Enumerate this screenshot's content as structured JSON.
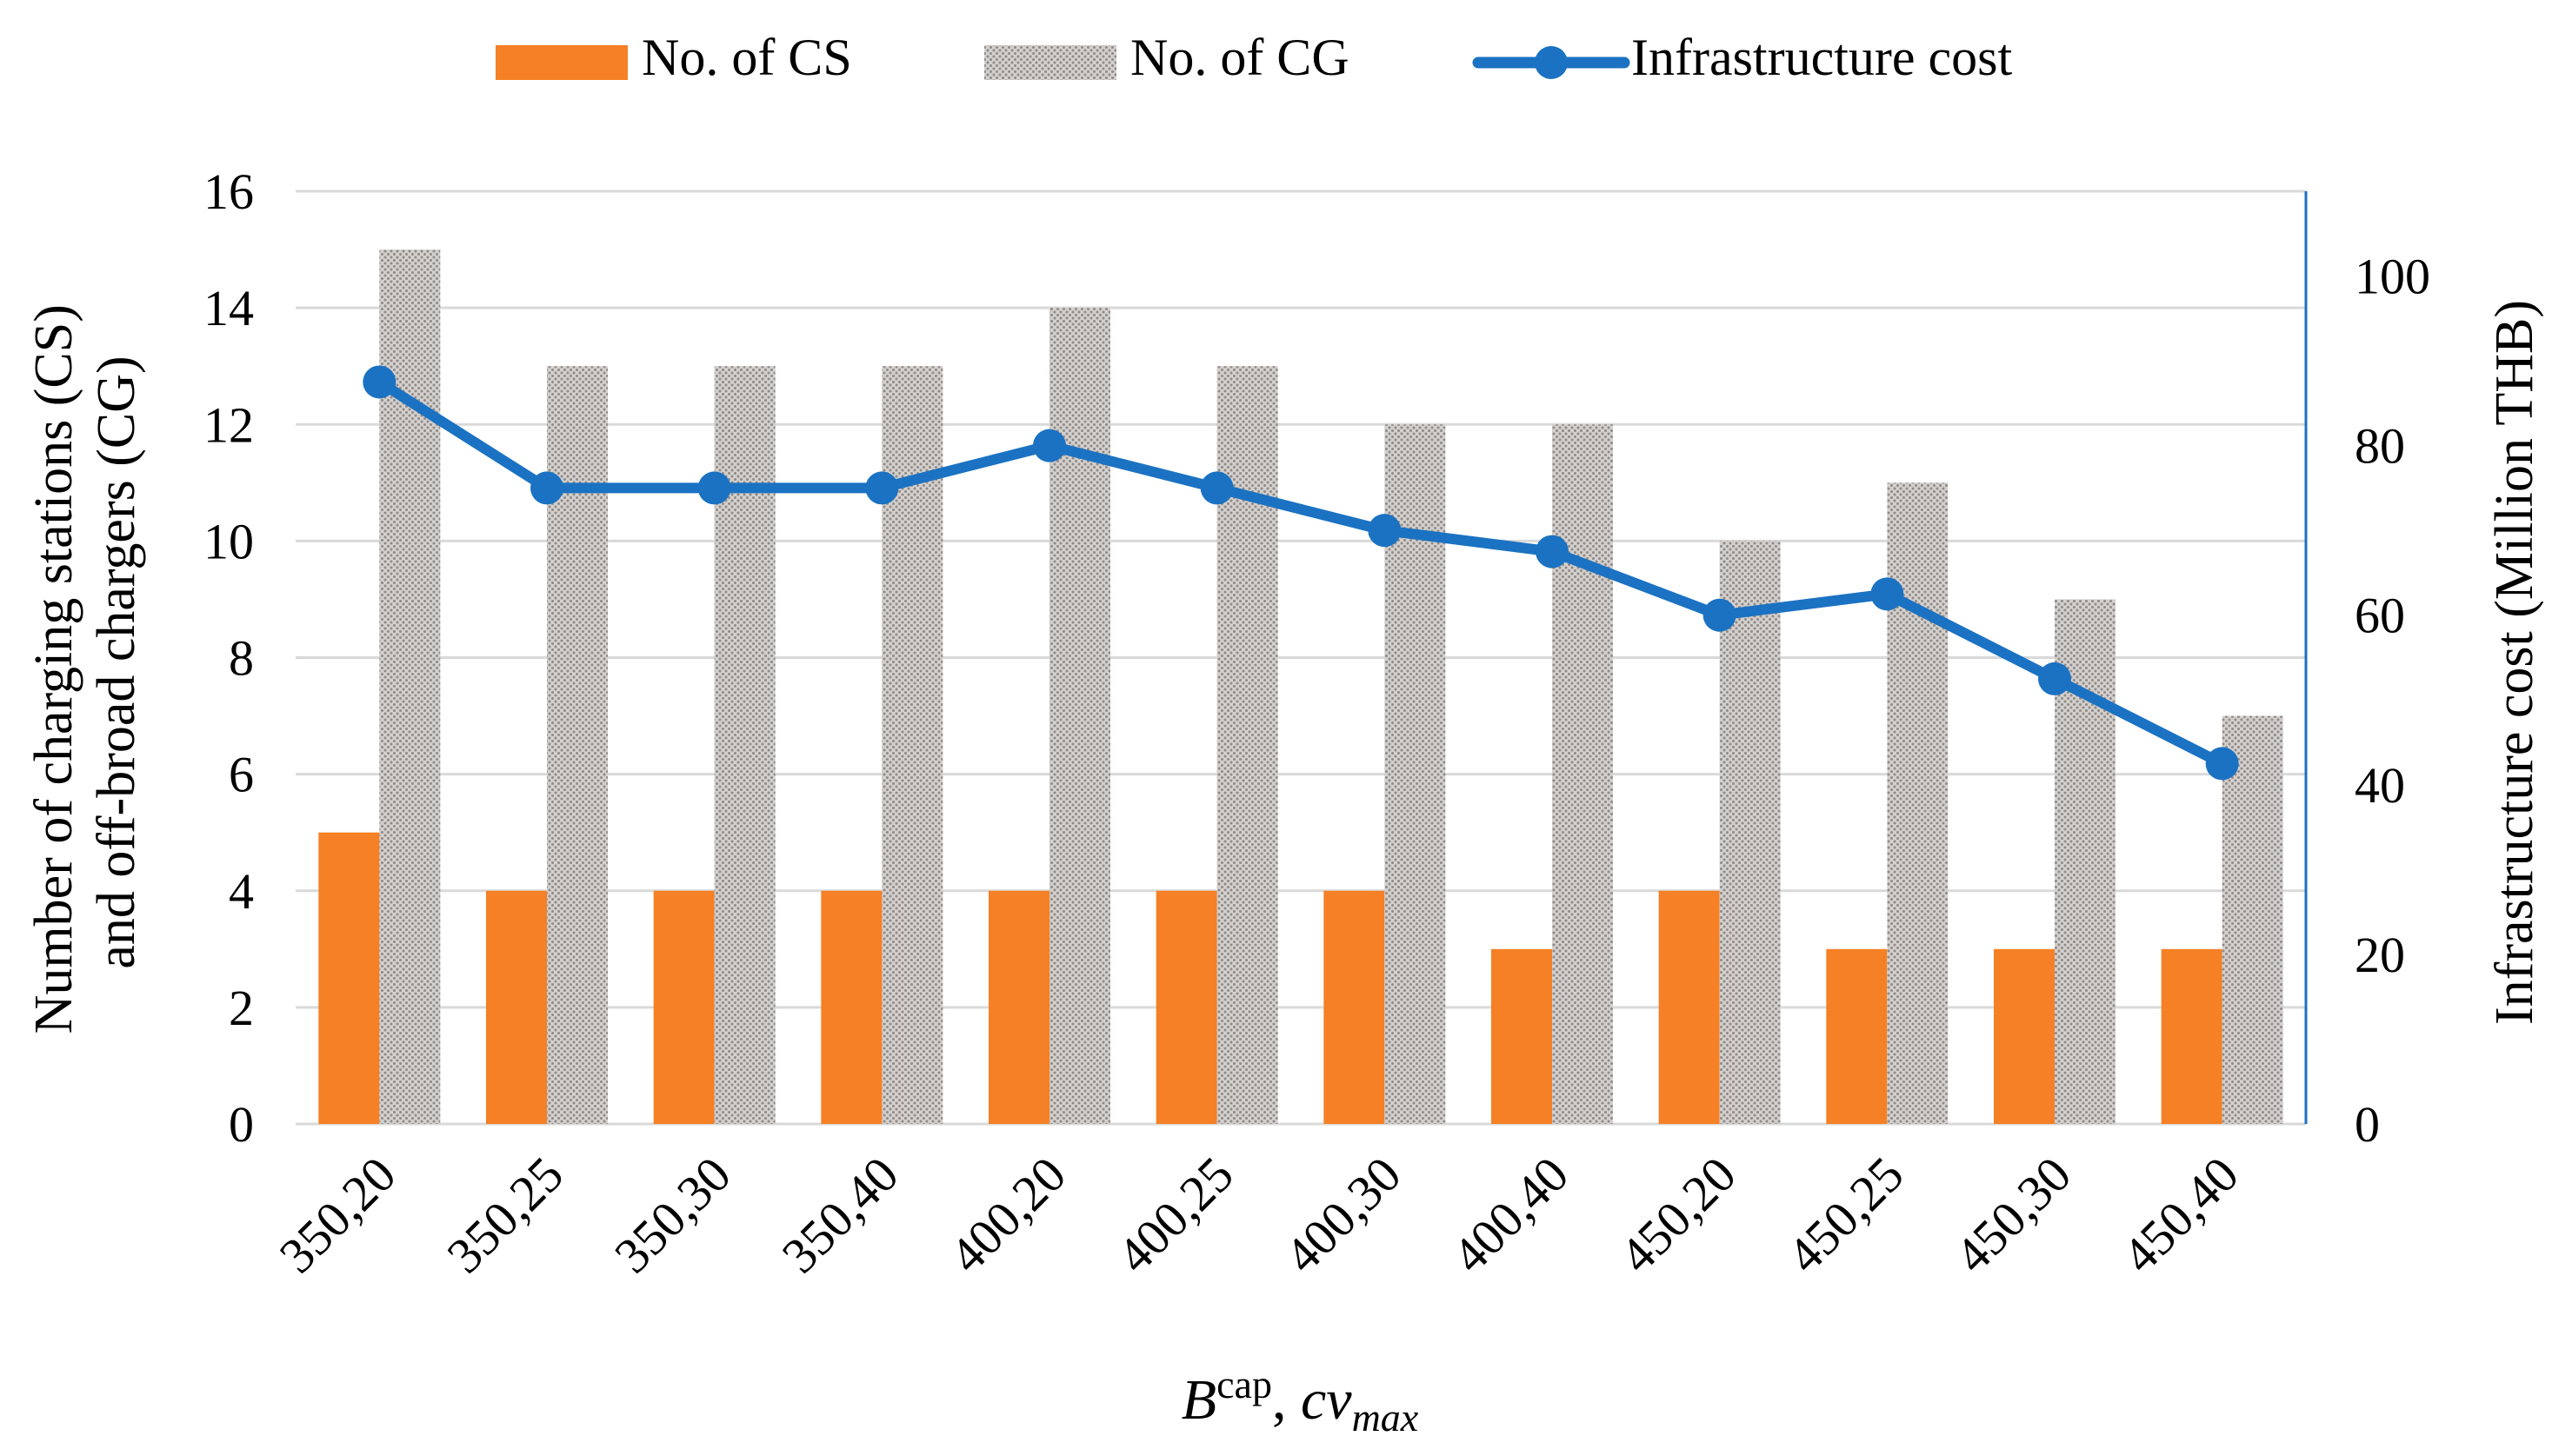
{
  "chart_data": {
    "type": "bar",
    "categories": [
      "350,20",
      "350,25",
      "350,30",
      "350,40",
      "400,20",
      "400,25",
      "400,30",
      "400,40",
      "450,20",
      "450,25",
      "450,30",
      "450,40"
    ],
    "series": [
      {
        "name": "No. of CS",
        "kind": "bar",
        "axis": "left",
        "color": "#F58025",
        "values": [
          5,
          4,
          4,
          4,
          4,
          4,
          4,
          3,
          4,
          3,
          3,
          3
        ]
      },
      {
        "name": "No. of CG",
        "kind": "bar",
        "axis": "left",
        "color": "#BDB8B5",
        "pattern": "dotted",
        "values": [
          15,
          13,
          13,
          13,
          14,
          13,
          12,
          12,
          10,
          11,
          9,
          7
        ]
      },
      {
        "name": "Infrastructure cost",
        "kind": "line",
        "axis": "right",
        "color": "#1B72C2",
        "values": [
          87.5,
          75,
          75,
          75,
          80,
          75,
          70,
          67.5,
          60,
          62.5,
          52.5,
          42.5
        ]
      }
    ],
    "y_left": {
      "label_line1": "Number of charging stations (CS)",
      "label_line2": "and off-broad chargers (CG)",
      "ylim": [
        0,
        16
      ],
      "ticks": [
        0,
        2,
        4,
        6,
        8,
        10,
        12,
        14,
        16
      ]
    },
    "y_right": {
      "label": "Infrastructure cost (Million THB)",
      "ylim": [
        0,
        110
      ],
      "ticks": [
        0,
        20,
        40,
        60,
        80,
        100
      ]
    },
    "xlabel": {
      "b": "B",
      "cap": "cap",
      "sep": ", ",
      "cv": "cv",
      "max": "max"
    },
    "legend": {
      "position": "top-center"
    },
    "grid": "horizontal"
  }
}
